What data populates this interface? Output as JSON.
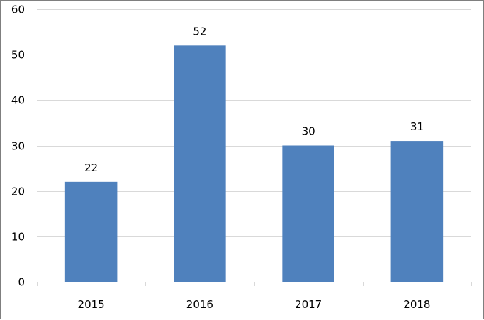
{
  "chart_data": {
    "type": "bar",
    "title": "",
    "xlabel": "",
    "ylabel": "",
    "categories": [
      "2015",
      "2016",
      "2017",
      "2018"
    ],
    "values": [
      22,
      52,
      30,
      31
    ],
    "data_labels": [
      "22",
      "52",
      "30",
      "31"
    ],
    "ylim": [
      0,
      60
    ],
    "yticks": [
      "0",
      "10",
      "20",
      "30",
      "40",
      "50",
      "60"
    ],
    "grid": true,
    "legend": "none",
    "bar_color": "#4f81bd"
  }
}
